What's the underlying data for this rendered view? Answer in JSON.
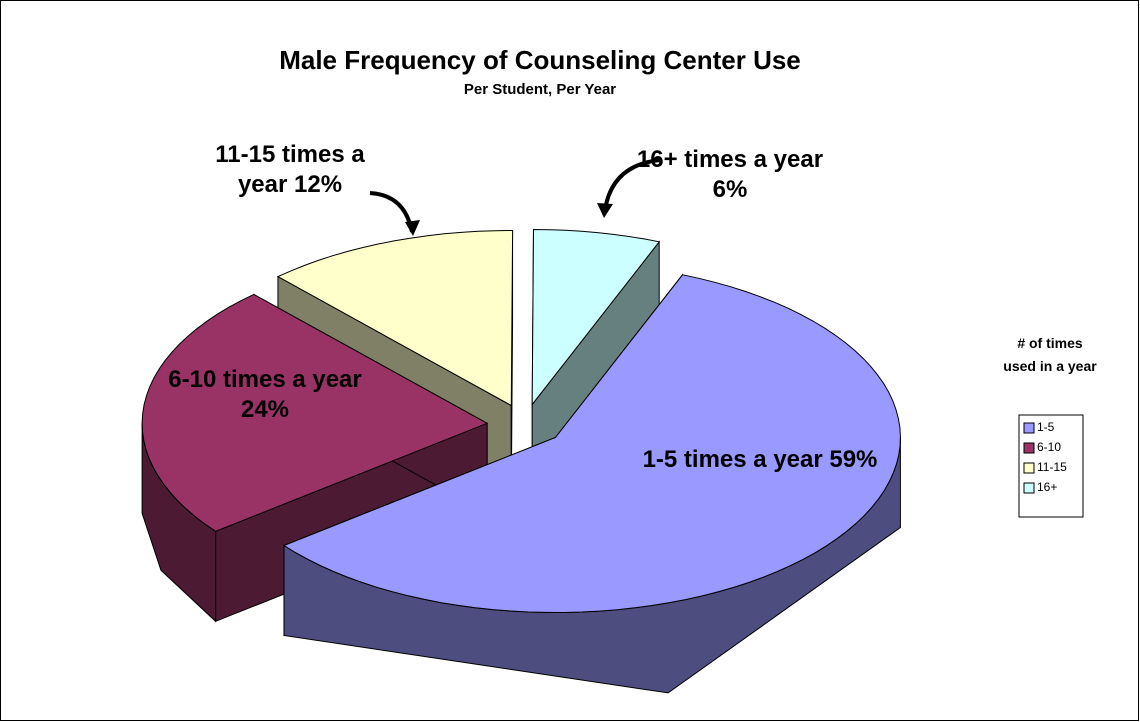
{
  "chart_data": {
    "type": "pie3d",
    "title": "Male Frequency of Counseling Center Use",
    "subtitle": "Per Student, Per Year",
    "legend_title": "# of times used in a year",
    "categories": [
      "1-5",
      "6-10",
      "11-15",
      "16+"
    ],
    "values": [
      59,
      24,
      12,
      6
    ],
    "value_labels": [
      "1-5 times a year 59%",
      "6-10 times a year 24%",
      "11-15 times a year 12%",
      "16+ times a year 6%"
    ],
    "colors": [
      "#9999ff",
      "#993366",
      "#ffffcc",
      "#ccffff"
    ],
    "legend": "right"
  }
}
